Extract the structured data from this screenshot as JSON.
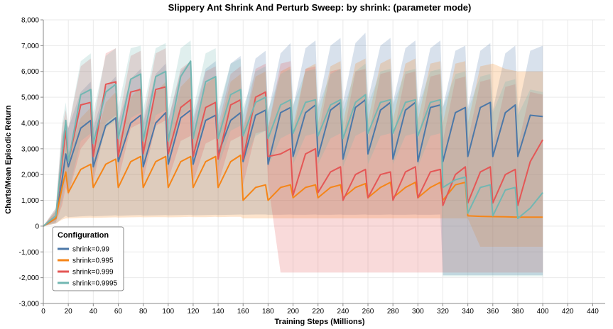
{
  "chart_data": {
    "type": "line",
    "title": "Slippery Ant Shrink And Perturb Sweep: by shrink: (parameter mode)",
    "xlabel": "Training Steps (Millions)",
    "ylabel": "Charts/Mean Episodic Return",
    "xlim": [
      0,
      450
    ],
    "ylim": [
      -3000,
      8000
    ],
    "x_ticks": [
      0,
      20,
      40,
      60,
      80,
      100,
      120,
      140,
      160,
      180,
      200,
      220,
      240,
      260,
      280,
      300,
      320,
      340,
      360,
      380,
      400,
      420,
      440
    ],
    "y_ticks": [
      -3000,
      -2000,
      -1000,
      0,
      1000,
      2000,
      3000,
      4000,
      5000,
      6000,
      7000,
      8000
    ],
    "y_tick_labels": [
      "-3,000",
      "-2,000",
      "-1,000",
      "0",
      "1,000",
      "2,000",
      "3,000",
      "4,000",
      "5,000",
      "6,000",
      "7,000",
      "8,000"
    ],
    "grid": true,
    "legend": {
      "title": "Configuration",
      "position": "bottom-left"
    },
    "series": [
      {
        "name": "shrink=0.99",
        "color": "#4c78a8",
        "x": [
          0,
          10,
          15,
          18,
          20,
          30,
          38,
          40,
          50,
          58,
          60,
          70,
          78,
          80,
          90,
          98,
          100,
          110,
          118,
          120,
          130,
          138,
          140,
          150,
          158,
          160,
          170,
          178,
          180,
          190,
          198,
          200,
          210,
          218,
          220,
          230,
          238,
          240,
          250,
          258,
          260,
          270,
          278,
          280,
          290,
          298,
          300,
          310,
          318,
          320,
          330,
          338,
          340,
          350,
          358,
          360,
          370,
          378,
          380,
          390,
          400
        ],
        "y": [
          0,
          300,
          1800,
          2800,
          2300,
          3800,
          4100,
          2300,
          3900,
          4200,
          2500,
          4000,
          4300,
          2300,
          4000,
          4400,
          2400,
          4200,
          4500,
          2400,
          4100,
          4300,
          2800,
          4100,
          4400,
          2500,
          4300,
          4500,
          2400,
          4400,
          4600,
          2700,
          4400,
          4700,
          2700,
          4500,
          4800,
          2600,
          4600,
          4900,
          2800,
          4500,
          4800,
          2600,
          4500,
          4800,
          2500,
          4600,
          4700,
          2500,
          4400,
          4600,
          2700,
          4600,
          4800,
          2700,
          4400,
          4700,
          2700,
          4300,
          4250
        ],
        "band_lo": [
          0,
          100,
          300,
          400,
          350,
          380,
          400,
          380,
          400,
          420,
          400,
          420,
          430,
          410,
          420,
          430,
          420,
          430,
          440,
          420,
          430,
          440,
          430,
          440,
          450,
          440,
          450,
          450,
          440,
          440,
          450,
          440,
          440,
          450,
          440,
          440,
          450,
          440,
          440,
          450,
          440,
          440,
          450,
          440,
          440,
          450,
          440,
          440,
          450,
          -1900,
          -1900,
          -1900,
          -1900,
          -1900,
          -1900,
          -1900,
          -1900,
          -1900,
          -1900,
          -1900,
          -1900
        ],
        "band_hi": [
          0,
          600,
          3500,
          4000,
          3800,
          5200,
          5600,
          3800,
          5400,
          5800,
          4000,
          5700,
          6100,
          4000,
          5900,
          6300,
          4100,
          6000,
          6400,
          4200,
          6100,
          6400,
          4300,
          6300,
          6600,
          4300,
          6500,
          6800,
          4400,
          6700,
          7100,
          4600,
          6900,
          7200,
          4700,
          7000,
          7300,
          4800,
          7100,
          7500,
          4900,
          7000,
          7300,
          4800,
          6900,
          7200,
          4700,
          6900,
          7200,
          4600,
          6800,
          7000,
          4600,
          6800,
          7100,
          4500,
          6700,
          7000,
          4500,
          6800,
          7000
        ]
      },
      {
        "name": "shrink=0.995",
        "color": "#f58518",
        "x": [
          0,
          10,
          15,
          18,
          20,
          30,
          38,
          40,
          50,
          58,
          60,
          70,
          78,
          80,
          90,
          98,
          100,
          110,
          118,
          120,
          130,
          138,
          140,
          150,
          158,
          160,
          170,
          178,
          180,
          190,
          198,
          200,
          210,
          218,
          220,
          230,
          238,
          240,
          250,
          258,
          260,
          270,
          278,
          280,
          290,
          298,
          300,
          310,
          318,
          320,
          330,
          338,
          340,
          350,
          360,
          370,
          380,
          390,
          400
        ],
        "y": [
          0,
          300,
          1500,
          2100,
          1300,
          2200,
          2400,
          1500,
          2400,
          2600,
          1500,
          2500,
          2700,
          1500,
          2500,
          2700,
          1500,
          2500,
          2700,
          1500,
          2500,
          2700,
          1500,
          2500,
          2750,
          1000,
          1500,
          1600,
          1000,
          1500,
          1600,
          1100,
          1500,
          1600,
          1100,
          1500,
          1600,
          1100,
          1500,
          1650,
          1100,
          1500,
          1700,
          1100,
          1500,
          1700,
          1100,
          1500,
          1700,
          1000,
          1600,
          1700,
          400,
          380,
          370,
          360,
          350,
          350,
          350
        ],
        "band_lo": [
          0,
          100,
          250,
          300,
          300,
          320,
          330,
          320,
          330,
          340,
          330,
          340,
          350,
          340,
          350,
          350,
          340,
          350,
          360,
          350,
          350,
          360,
          350,
          360,
          360,
          300,
          300,
          300,
          300,
          300,
          300,
          300,
          300,
          300,
          300,
          300,
          300,
          300,
          300,
          300,
          300,
          300,
          300,
          300,
          300,
          300,
          300,
          300,
          300,
          300,
          300,
          300,
          300,
          -800,
          -800,
          -800,
          -800,
          -800,
          -800
        ],
        "band_hi": [
          0,
          600,
          2500,
          3300,
          2800,
          4200,
          4600,
          3000,
          4800,
          5200,
          3200,
          5000,
          5400,
          3300,
          5200,
          5600,
          3400,
          5400,
          5800,
          3500,
          5500,
          5800,
          3600,
          5600,
          5900,
          3700,
          5800,
          6000,
          3800,
          6000,
          6200,
          3900,
          6100,
          6300,
          4000,
          6200,
          6400,
          4000,
          6300,
          6500,
          4100,
          6300,
          6500,
          4100,
          6300,
          6500,
          4100,
          6300,
          6400,
          4000,
          6300,
          6400,
          4000,
          6200,
          6300,
          6100,
          6000,
          6000,
          6000
        ]
      },
      {
        "name": "shrink=0.999",
        "color": "#e45756",
        "x": [
          0,
          10,
          15,
          18,
          20,
          30,
          38,
          40,
          50,
          58,
          60,
          70,
          78,
          80,
          90,
          98,
          100,
          110,
          118,
          120,
          130,
          138,
          140,
          150,
          158,
          160,
          170,
          178,
          180,
          190,
          198,
          200,
          210,
          218,
          220,
          230,
          238,
          240,
          250,
          258,
          260,
          270,
          278,
          280,
          290,
          298,
          300,
          310,
          318,
          320,
          330,
          338,
          340,
          350,
          358,
          360,
          370,
          378,
          380,
          390,
          400
        ],
        "y": [
          0,
          400,
          2500,
          3700,
          2500,
          4700,
          4800,
          2700,
          5500,
          5600,
          2700,
          5200,
          5300,
          2800,
          5300,
          5400,
          2800,
          4600,
          4900,
          2700,
          4600,
          4800,
          2600,
          4700,
          4900,
          2600,
          5000,
          5200,
          2700,
          2800,
          3000,
          1200,
          2800,
          3000,
          1300,
          2100,
          2300,
          1000,
          2000,
          2200,
          1100,
          2000,
          2100,
          1000,
          2100,
          2300,
          1100,
          2100,
          2200,
          800,
          2000,
          2300,
          900,
          2100,
          2300,
          900,
          2000,
          2200,
          800,
          2500,
          3350
        ],
        "band_lo": [
          0,
          150,
          800,
          1500,
          1200,
          3000,
          3500,
          1700,
          4000,
          4300,
          1800,
          3800,
          4000,
          1800,
          3900,
          4100,
          1800,
          3300,
          3500,
          1700,
          3200,
          3400,
          1600,
          3300,
          3500,
          1600,
          3600,
          3700,
          1700,
          -1800,
          -1800,
          -1800,
          -1800,
          -1800,
          -1800,
          -1800,
          -1800,
          -1800,
          -1800,
          -1800,
          -1800,
          -1800,
          -1800,
          -1800,
          -1800,
          -1800,
          -1800,
          -1800,
          -1800,
          -1800,
          -1800,
          -1800,
          -1800,
          -1800,
          -1800,
          -1800,
          -1800,
          -1800,
          -1800,
          -1800,
          -1800
        ],
        "band_hi": [
          0,
          700,
          3800,
          4500,
          3800,
          6200,
          6500,
          4000,
          6700,
          6900,
          4000,
          6600,
          6800,
          4100,
          6700,
          6900,
          4100,
          6100,
          6400,
          4000,
          6000,
          6200,
          3900,
          5900,
          6200,
          3800,
          6100,
          6300,
          3800,
          6300,
          6400,
          3600,
          6100,
          6200,
          3500,
          6000,
          6100,
          3400,
          6000,
          6100,
          3400,
          5900,
          6000,
          3400,
          5900,
          6000,
          3300,
          5800,
          5900,
          3300,
          5700,
          5800,
          3300,
          5600,
          5700,
          3200,
          5400,
          5500,
          3100,
          5200,
          5100
        ]
      },
      {
        "name": "shrink=0.9995",
        "color": "#72b7b2",
        "x": [
          0,
          10,
          15,
          18,
          20,
          30,
          38,
          40,
          50,
          58,
          60,
          70,
          78,
          80,
          90,
          98,
          100,
          110,
          118,
          120,
          130,
          138,
          140,
          150,
          158,
          160,
          170,
          178,
          180,
          190,
          198,
          200,
          210,
          218,
          220,
          230,
          238,
          240,
          250,
          258,
          260,
          270,
          278,
          280,
          290,
          298,
          300,
          310,
          318,
          320,
          330,
          338,
          340,
          350,
          358,
          360,
          370,
          378,
          380,
          390,
          400
        ],
        "y": [
          0,
          400,
          2800,
          4100,
          2500,
          5100,
          5300,
          3200,
          5200,
          5500,
          3400,
          5700,
          5900,
          3300,
          5800,
          6000,
          3300,
          5800,
          6400,
          3400,
          5600,
          5800,
          3400,
          5100,
          5300,
          3500,
          4800,
          5000,
          3400,
          4700,
          4900,
          3600,
          4800,
          4900,
          3500,
          4700,
          4900,
          3400,
          4800,
          5100,
          3600,
          4800,
          4900,
          3600,
          4800,
          4900,
          3500,
          4800,
          4900,
          1500,
          1800,
          1900,
          500,
          1500,
          1600,
          400,
          1400,
          1500,
          300,
          700,
          1300
        ],
        "band_lo": [
          0,
          150,
          1000,
          1800,
          1300,
          3300,
          3600,
          2000,
          3800,
          4100,
          2200,
          4200,
          4400,
          2200,
          4300,
          4500,
          2200,
          4300,
          4600,
          2300,
          4100,
          4300,
          2300,
          3700,
          3900,
          2400,
          3500,
          3700,
          2300,
          3400,
          3600,
          2400,
          3500,
          3600,
          2400,
          3400,
          3600,
          2300,
          3500,
          3700,
          2400,
          3500,
          3600,
          2400,
          3500,
          3600,
          2300,
          3500,
          3600,
          -1950,
          -1950,
          -1950,
          -1950,
          -1950,
          -1950,
          -1950,
          -1950,
          -1950,
          -1950,
          -1950,
          -1950
        ],
        "band_hi": [
          0,
          700,
          4000,
          4800,
          3800,
          6400,
          6700,
          4400,
          6600,
          6900,
          4600,
          6900,
          7000,
          4500,
          6900,
          7100,
          4500,
          6900,
          7200,
          4500,
          6700,
          6900,
          4500,
          6300,
          6500,
          4600,
          6000,
          6200,
          4500,
          5900,
          6100,
          4700,
          6000,
          6100,
          4600,
          5900,
          6100,
          4500,
          6000,
          6300,
          4700,
          6000,
          6100,
          4700,
          6000,
          6100,
          4600,
          6000,
          6100,
          4600,
          5900,
          6000,
          4500,
          5800,
          5900,
          4400,
          5600,
          5700,
          4300,
          5300,
          5200
        ]
      }
    ]
  }
}
